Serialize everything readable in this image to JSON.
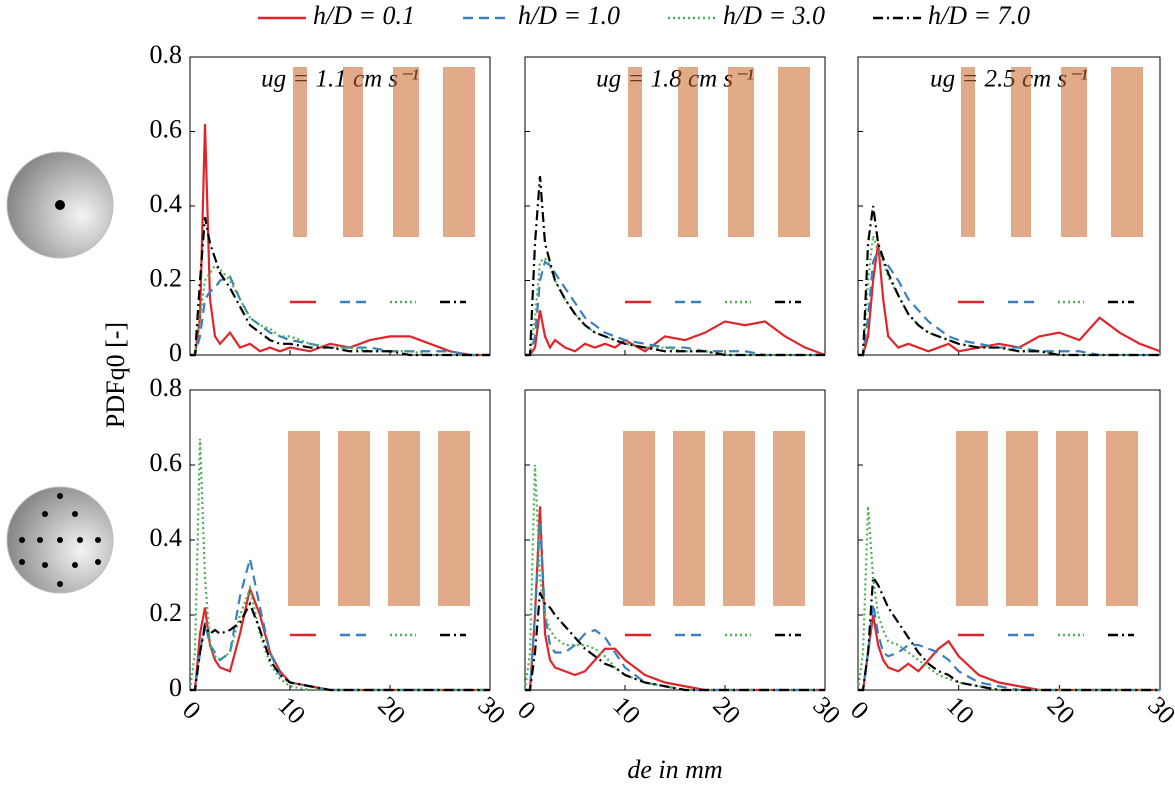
{
  "chart_data": {
    "type": "line",
    "ylabel": "PDFq0 [-]",
    "xlabel": "de in mm",
    "xlim": [
      0,
      30
    ],
    "xticks": [
      0,
      10,
      20,
      30
    ],
    "ylim": [
      0,
      0.8
    ],
    "yticks": [
      0,
      0.2,
      0.4,
      0.6,
      0.8
    ],
    "x": [
      0,
      0.5,
      1,
      1.5,
      2,
      2.5,
      3,
      4,
      5,
      6,
      7,
      8,
      9,
      10,
      12,
      14,
      16,
      18,
      20,
      22,
      24,
      26,
      28,
      30
    ],
    "series": [
      {
        "name": "h/D = 0.1",
        "color": "#e0252a",
        "dash": "none"
      },
      {
        "name": "h/D = 1.0",
        "color": "#3a80c0",
        "dash": "10,6"
      },
      {
        "name": "h/D = 3.0",
        "color": "#4caf50",
        "dash": "2,3"
      },
      {
        "name": "h/D = 7.0",
        "color": "#000000",
        "dash": "10,4,2,4"
      }
    ],
    "panels": [
      {
        "title": "ug = 1.1 cm s⁻¹",
        "values": [
          [
            0,
            0,
            0.1,
            0.62,
            0.15,
            0.05,
            0.03,
            0.06,
            0.02,
            0.03,
            0.01,
            0.02,
            0.01,
            0.02,
            0.01,
            0.03,
            0.02,
            0.04,
            0.05,
            0.05,
            0.03,
            0.01,
            0,
            0
          ],
          [
            0,
            0,
            0.05,
            0.15,
            0.17,
            0.18,
            0.2,
            0.21,
            0.15,
            0.1,
            0.08,
            0.06,
            0.05,
            0.04,
            0.03,
            0.02,
            0.02,
            0.02,
            0.01,
            0.01,
            0.01,
            0.01,
            0,
            0
          ],
          [
            0,
            0,
            0.1,
            0.2,
            0.22,
            0.24,
            0.23,
            0.2,
            0.15,
            0.1,
            0.08,
            0.07,
            0.05,
            0.05,
            0.03,
            0.02,
            0.02,
            0.01,
            0.01,
            0.01,
            0,
            0,
            0,
            0
          ],
          [
            0,
            0,
            0.2,
            0.37,
            0.3,
            0.26,
            0.22,
            0.18,
            0.13,
            0.08,
            0.06,
            0.04,
            0.03,
            0.03,
            0.02,
            0.02,
            0.01,
            0.01,
            0.01,
            0,
            0,
            0,
            0,
            0
          ]
        ]
      },
      {
        "title": "ug = 1.8 cm s⁻¹",
        "values": [
          [
            0,
            0,
            0.02,
            0.12,
            0.05,
            0.02,
            0.04,
            0.02,
            0.01,
            0.03,
            0.02,
            0.03,
            0.02,
            0.04,
            0.01,
            0.05,
            0.04,
            0.06,
            0.09,
            0.08,
            0.09,
            0.05,
            0.02,
            0
          ],
          [
            0,
            0,
            0.05,
            0.2,
            0.25,
            0.24,
            0.22,
            0.18,
            0.14,
            0.1,
            0.08,
            0.06,
            0.05,
            0.04,
            0.03,
            0.02,
            0.02,
            0.01,
            0.01,
            0.01,
            0,
            0,
            0,
            0
          ],
          [
            0,
            0,
            0.1,
            0.25,
            0.26,
            0.24,
            0.2,
            0.15,
            0.11,
            0.08,
            0.06,
            0.05,
            0.04,
            0.03,
            0.02,
            0.02,
            0.01,
            0.01,
            0,
            0,
            0,
            0,
            0,
            0
          ],
          [
            0,
            0,
            0.3,
            0.48,
            0.3,
            0.25,
            0.2,
            0.15,
            0.11,
            0.08,
            0.06,
            0.05,
            0.04,
            0.03,
            0.02,
            0.01,
            0.01,
            0.01,
            0,
            0,
            0,
            0,
            0,
            0
          ]
        ]
      },
      {
        "title": "ug = 2.5 cm s⁻¹",
        "values": [
          [
            0,
            0,
            0.05,
            0.2,
            0.3,
            0.15,
            0.05,
            0.02,
            0.03,
            0.02,
            0.01,
            0.02,
            0.03,
            0.01,
            0.02,
            0.03,
            0.02,
            0.05,
            0.06,
            0.04,
            0.1,
            0.06,
            0.03,
            0.01
          ],
          [
            0,
            0,
            0.1,
            0.25,
            0.28,
            0.26,
            0.24,
            0.2,
            0.15,
            0.12,
            0.09,
            0.07,
            0.05,
            0.04,
            0.03,
            0.02,
            0.02,
            0.01,
            0.01,
            0.01,
            0,
            0,
            0,
            0
          ],
          [
            0,
            0,
            0.2,
            0.32,
            0.28,
            0.25,
            0.21,
            0.16,
            0.11,
            0.08,
            0.06,
            0.05,
            0.04,
            0.03,
            0.02,
            0.02,
            0.01,
            0.01,
            0,
            0,
            0,
            0,
            0,
            0
          ],
          [
            0,
            0,
            0.3,
            0.4,
            0.3,
            0.26,
            0.22,
            0.16,
            0.11,
            0.08,
            0.06,
            0.05,
            0.04,
            0.03,
            0.02,
            0.02,
            0.01,
            0.01,
            0,
            0,
            0,
            0,
            0,
            0
          ]
        ]
      },
      {
        "values": [
          [
            0,
            0,
            0.15,
            0.22,
            0.12,
            0.08,
            0.06,
            0.05,
            0.15,
            0.27,
            0.2,
            0.1,
            0.05,
            0.02,
            0.01,
            0,
            0,
            0,
            0,
            0,
            0,
            0,
            0,
            0
          ],
          [
            0,
            0,
            0.1,
            0.18,
            0.12,
            0.1,
            0.08,
            0.1,
            0.25,
            0.35,
            0.22,
            0.1,
            0.04,
            0.02,
            0.01,
            0,
            0,
            0,
            0,
            0,
            0,
            0,
            0,
            0
          ],
          [
            0,
            0.1,
            0.67,
            0.3,
            0.12,
            0.09,
            0.08,
            0.1,
            0.2,
            0.27,
            0.15,
            0.07,
            0.03,
            0.01,
            0,
            0,
            0,
            0,
            0,
            0,
            0,
            0,
            0,
            0
          ],
          [
            0,
            0,
            0.1,
            0.17,
            0.15,
            0.16,
            0.15,
            0.16,
            0.18,
            0.23,
            0.16,
            0.08,
            0.04,
            0.02,
            0.01,
            0,
            0,
            0,
            0,
            0,
            0,
            0,
            0,
            0
          ]
        ]
      },
      {
        "values": [
          [
            0,
            0,
            0.2,
            0.49,
            0.15,
            0.08,
            0.06,
            0.05,
            0.04,
            0.05,
            0.08,
            0.11,
            0.11,
            0.08,
            0.04,
            0.02,
            0.01,
            0,
            0,
            0,
            0,
            0,
            0,
            0
          ],
          [
            0,
            0,
            0.2,
            0.45,
            0.2,
            0.12,
            0.1,
            0.1,
            0.12,
            0.15,
            0.16,
            0.14,
            0.1,
            0.06,
            0.02,
            0.01,
            0,
            0,
            0,
            0,
            0,
            0,
            0,
            0
          ],
          [
            0,
            0.1,
            0.6,
            0.3,
            0.2,
            0.16,
            0.14,
            0.12,
            0.12,
            0.12,
            0.11,
            0.09,
            0.06,
            0.04,
            0.02,
            0.01,
            0,
            0,
            0,
            0,
            0,
            0,
            0,
            0
          ],
          [
            0,
            0,
            0.1,
            0.26,
            0.23,
            0.22,
            0.2,
            0.17,
            0.14,
            0.11,
            0.09,
            0.07,
            0.06,
            0.04,
            0.02,
            0.01,
            0,
            0,
            0,
            0,
            0,
            0,
            0,
            0
          ]
        ]
      },
      {
        "values": [
          [
            0,
            0,
            0.1,
            0.2,
            0.12,
            0.08,
            0.06,
            0.05,
            0.07,
            0.05,
            0.08,
            0.11,
            0.13,
            0.09,
            0.04,
            0.02,
            0.01,
            0,
            0,
            0,
            0,
            0,
            0,
            0
          ],
          [
            0,
            0,
            0.1,
            0.23,
            0.15,
            0.1,
            0.09,
            0.1,
            0.12,
            0.12,
            0.11,
            0.1,
            0.08,
            0.05,
            0.02,
            0.01,
            0,
            0,
            0,
            0,
            0,
            0,
            0,
            0
          ],
          [
            0,
            0.1,
            0.49,
            0.3,
            0.2,
            0.16,
            0.13,
            0.12,
            0.1,
            0.08,
            0.06,
            0.04,
            0.03,
            0.02,
            0.01,
            0,
            0,
            0,
            0,
            0,
            0,
            0,
            0,
            0
          ],
          [
            0,
            0,
            0.1,
            0.3,
            0.28,
            0.25,
            0.22,
            0.18,
            0.14,
            0.1,
            0.07,
            0.05,
            0.04,
            0.02,
            0.01,
            0,
            0,
            0,
            0,
            0,
            0,
            0,
            0,
            0
          ]
        ]
      }
    ]
  }
}
